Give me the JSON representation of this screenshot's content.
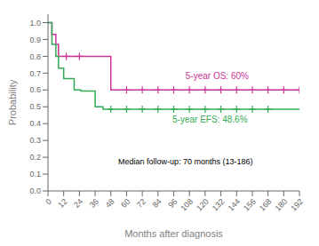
{
  "chart_data": {
    "type": "line",
    "xlabel": "Months after diagnosis",
    "ylabel": "Probability",
    "xlim": [
      0,
      192
    ],
    "ylim": [
      0.0,
      1.05
    ],
    "xticks": [
      0,
      12,
      24,
      36,
      48,
      60,
      72,
      84,
      96,
      108,
      120,
      132,
      144,
      156,
      168,
      180,
      192
    ],
    "yticks": [
      {
        "value": 0.0,
        "label": "0.0"
      },
      0.1,
      0.2,
      0.3,
      0.4,
      0.5,
      0.6,
      0.7,
      0.8,
      0.9,
      {
        "value": 1.0,
        "label": "1.0"
      }
    ],
    "grid": false,
    "series": [
      {
        "type": "line",
        "color": "#cc3399",
        "x": [
          0,
          3,
          3,
          6,
          6,
          8,
          8,
          36,
          36,
          48,
          48,
          192
        ],
        "values": [
          1.0,
          1.0,
          0.93,
          0.93,
          0.87,
          0.87,
          0.8,
          0.8,
          0.8,
          0.8,
          0.6,
          0.6
        ]
      },
      {
        "type": "scatter",
        "color": "#cc3399",
        "marker": "+",
        "x": [
          14,
          24,
          60,
          72,
          84,
          96,
          108,
          120,
          132,
          144,
          156,
          168,
          180,
          192
        ],
        "values": [
          0.8,
          0.8,
          0.6,
          0.6,
          0.6,
          0.6,
          0.6,
          0.6,
          0.6,
          0.6,
          0.6,
          0.6,
          0.6,
          0.6
        ]
      },
      {
        "type": "line",
        "color": "#33aa55",
        "x": [
          0,
          3,
          3,
          6,
          6,
          8,
          8,
          12,
          12,
          20,
          20,
          25,
          25,
          36,
          36,
          42,
          42,
          48,
          48,
          192
        ],
        "values": [
          1.0,
          1.0,
          0.87,
          0.87,
          0.8,
          0.8,
          0.73,
          0.73,
          0.667,
          0.667,
          0.6,
          0.6,
          0.593,
          0.593,
          0.5,
          0.5,
          0.486,
          0.486,
          0.486,
          0.486
        ]
      },
      {
        "type": "scatter",
        "color": "#33aa55",
        "marker": "+",
        "x": [
          48,
          60,
          72,
          84,
          96,
          108,
          120,
          132,
          144,
          156,
          168
        ],
        "values": [
          0.486,
          0.486,
          0.486,
          0.486,
          0.486,
          0.486,
          0.486,
          0.486,
          0.486,
          0.486,
          0.486
        ]
      }
    ],
    "annotations": [
      {
        "text": "5-year OS: 60%",
        "color": "#cc3399"
      },
      {
        "text": "5-year EFS: 48.6%",
        "color": "#33aa55"
      },
      {
        "text": "Median follow-up: 70 months (13-186)",
        "color": "#000000"
      }
    ]
  }
}
